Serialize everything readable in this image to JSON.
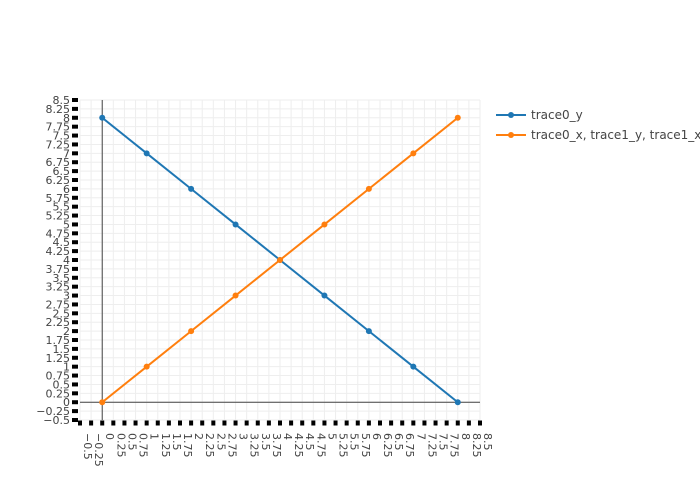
{
  "chart_data": {
    "type": "line",
    "xlim": [
      -0.5,
      8.5
    ],
    "ylim": [
      -0.5,
      8.5
    ],
    "tick_step": 0.25,
    "grid": true,
    "legend_position": "top-right",
    "x": [
      0,
      1,
      2,
      3,
      4,
      5,
      6,
      7,
      8
    ],
    "series": [
      {
        "name": "trace0_y",
        "color": "#1f77b4",
        "values": [
          8,
          7,
          6,
          5,
          4,
          3,
          2,
          1,
          0
        ]
      },
      {
        "name": "trace0_x, trace1_y, trace1_x",
        "color": "#ff7f0e",
        "values": [
          0,
          1,
          2,
          3,
          4,
          5,
          6,
          7,
          8
        ]
      }
    ],
    "x_tick_labels": [
      "−0.5",
      "−0.25",
      "0",
      "0.25",
      "0.5",
      "0.75",
      "1",
      "1.25",
      "1.5",
      "1.75",
      "2",
      "2.25",
      "2.5",
      "2.75",
      "3",
      "3.25",
      "3.5",
      "3.75",
      "4",
      "4.25",
      "4.5",
      "4.75",
      "5",
      "5.25",
      "5.5",
      "5.75",
      "6",
      "6.25",
      "6.5",
      "6.75",
      "7",
      "7.25",
      "7.5",
      "7.75",
      "8",
      "8.25",
      "8.5"
    ],
    "y_tick_labels": [
      "−0.5",
      "−0.25",
      "0",
      "0.25",
      "0.5",
      "0.75",
      "1",
      "1.25",
      "1.5",
      "1.75",
      "2",
      "2.25",
      "2.5",
      "2.75",
      "3",
      "3.25",
      "3.5",
      "3.75",
      "4",
      "4.25",
      "4.5",
      "4.75",
      "5",
      "5.25",
      "5.5",
      "5.75",
      "6",
      "6.25",
      "6.5",
      "6.75",
      "7",
      "7.25",
      "7.5",
      "7.75",
      "8",
      "8.25",
      "8.5"
    ]
  }
}
